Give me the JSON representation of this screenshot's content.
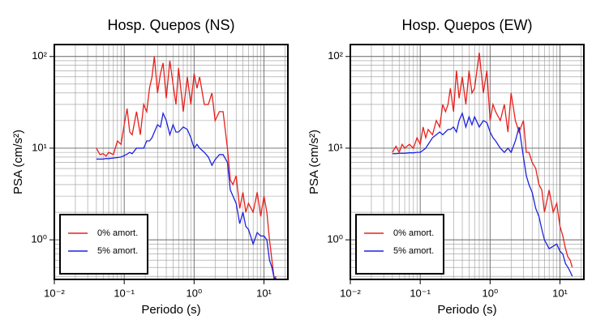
{
  "chart_data": [
    {
      "type": "line",
      "title": "Hosp. Quepos (NS)",
      "x_label": "Periodo (s)",
      "y_label": "PSA (cm/s²)",
      "log_x": true,
      "log_y": true,
      "grid": true,
      "legend": "lower left",
      "xlim": [
        0.01,
        22
      ],
      "ylim": [
        0.37,
        135
      ],
      "xticks": [
        {
          "value": 0.01,
          "label": "10⁻²"
        },
        {
          "value": 0.1,
          "label": "10⁻¹"
        },
        {
          "value": 1,
          "label": "10⁰"
        },
        {
          "value": 10,
          "label": "10¹"
        }
      ],
      "yticks": [
        {
          "value": 1,
          "label": "10⁰"
        },
        {
          "value": 10,
          "label": "10¹"
        },
        {
          "value": 100,
          "label": "10²"
        }
      ],
      "x": [
        0.04,
        0.045,
        0.05,
        0.055,
        0.06,
        0.07,
        0.08,
        0.09,
        0.1,
        0.11,
        0.12,
        0.13,
        0.15,
        0.17,
        0.19,
        0.21,
        0.23,
        0.25,
        0.27,
        0.3,
        0.33,
        0.36,
        0.4,
        0.45,
        0.5,
        0.55,
        0.6,
        0.7,
        0.8,
        0.9,
        1.0,
        1.1,
        1.2,
        1.4,
        1.6,
        1.8,
        2.0,
        2.3,
        2.6,
        3.0,
        3.3,
        3.6,
        4.0,
        4.5,
        5,
        5.5,
        6,
        7,
        8,
        9,
        10,
        11,
        12,
        13,
        14,
        15
      ],
      "series": [
        {
          "name": "0% amort.",
          "color": "#e8201c",
          "values": [
            10,
            8.5,
            8.7,
            8.2,
            9,
            8.5,
            12,
            11,
            18,
            27,
            15,
            14,
            25,
            14,
            30,
            25,
            45,
            60,
            100,
            40,
            65,
            85,
            35,
            90,
            50,
            30,
            75,
            25,
            60,
            30,
            65,
            45,
            60,
            30,
            30,
            40,
            20,
            25,
            25,
            10,
            4.5,
            4,
            5,
            2.2,
            3.3,
            2,
            2.5,
            2,
            3.3,
            1.8,
            3,
            2,
            1,
            0.6,
            0.38,
            0.4
          ]
        },
        {
          "name": "5% amort.",
          "color": "#1c22e0",
          "values": [
            7.6,
            7.6,
            7.6,
            7.7,
            7.7,
            7.8,
            7.9,
            8,
            8.3,
            8.6,
            9,
            8.7,
            10,
            10,
            10,
            12,
            12,
            13,
            15,
            18,
            17,
            24,
            20,
            14,
            18,
            15,
            15,
            17,
            16,
            13,
            10,
            11,
            10,
            9,
            8,
            6.5,
            7.5,
            8.5,
            8.5,
            7,
            3.5,
            3,
            2.5,
            1.5,
            2,
            1.4,
            1.3,
            0.9,
            1.2,
            1.1,
            1.1,
            1,
            0.6,
            0.5,
            0.38,
            0.38
          ]
        }
      ]
    },
    {
      "type": "line",
      "title": "Hosp. Quepos (EW)",
      "x_label": "Periodo (s)",
      "y_label": "PSA (cm/s²)",
      "log_x": true,
      "log_y": true,
      "grid": true,
      "legend": "lower left",
      "xlim": [
        0.01,
        22
      ],
      "ylim": [
        0.37,
        135
      ],
      "xticks": [
        {
          "value": 0.01,
          "label": "10⁻²"
        },
        {
          "value": 0.1,
          "label": "10⁻¹"
        },
        {
          "value": 1,
          "label": "10⁰"
        },
        {
          "value": 10,
          "label": "10¹"
        }
      ],
      "yticks": [
        {
          "value": 1,
          "label": "10⁰"
        },
        {
          "value": 10,
          "label": "10¹"
        },
        {
          "value": 100,
          "label": "10²"
        }
      ],
      "x": [
        0.04,
        0.045,
        0.05,
        0.055,
        0.06,
        0.07,
        0.08,
        0.09,
        0.1,
        0.11,
        0.12,
        0.13,
        0.15,
        0.17,
        0.19,
        0.21,
        0.23,
        0.25,
        0.27,
        0.3,
        0.33,
        0.36,
        0.4,
        0.45,
        0.5,
        0.55,
        0.6,
        0.7,
        0.8,
        0.9,
        1.0,
        1.1,
        1.2,
        1.4,
        1.6,
        1.8,
        2.0,
        2.3,
        2.6,
        3.0,
        3.3,
        3.6,
        4.0,
        4.5,
        5,
        5.5,
        6,
        7,
        8,
        9,
        10,
        11,
        12,
        13,
        14,
        15
      ],
      "series": [
        {
          "name": "0% amort.",
          "color": "#e8201c",
          "values": [
            9,
            10.5,
            9,
            11,
            10,
            11,
            10,
            13,
            11,
            17,
            13,
            16,
            14,
            20,
            17,
            30,
            25,
            30,
            45,
            25,
            70,
            35,
            60,
            30,
            70,
            40,
            45,
            110,
            40,
            70,
            20,
            30,
            25,
            20,
            30,
            15,
            40,
            20,
            15,
            20,
            9,
            9,
            7,
            6,
            4,
            3.5,
            2,
            3.5,
            2,
            2.5,
            1.4,
            1.1,
            0.8,
            0.65,
            0.6,
            0.5
          ]
        },
        {
          "name": "5% amort.",
          "color": "#1c22e0",
          "values": [
            8.7,
            8.7,
            8.8,
            8.8,
            8.8,
            8.9,
            8.9,
            9,
            9,
            9.5,
            10,
            11,
            13,
            14,
            15,
            14,
            15,
            16,
            16,
            17,
            15,
            20,
            24,
            17,
            22,
            18,
            22,
            17,
            20,
            19,
            15,
            13,
            12,
            10,
            9,
            10,
            9,
            12,
            17,
            8,
            5,
            4,
            3.3,
            2.2,
            1.8,
            1.3,
            1,
            0.8,
            0.85,
            0.9,
            0.75,
            0.7,
            0.55,
            0.5,
            0.45,
            0.4
          ]
        }
      ]
    }
  ]
}
